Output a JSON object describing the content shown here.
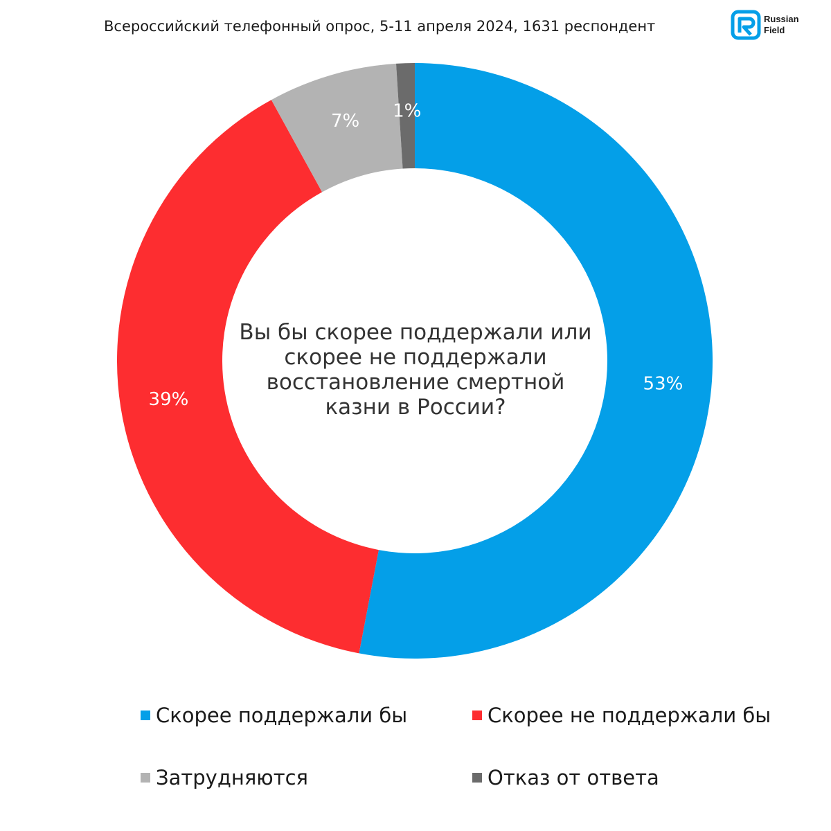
{
  "header": {
    "title": "Всероссийский телефонный опрос, 5-11 апреля 2024, 1631 респондент"
  },
  "logo": {
    "line1": "Russian",
    "line2": "Field"
  },
  "colors": {
    "support": "#049fe8",
    "oppose": "#fd2d30",
    "unsure": "#b3b3b3",
    "refuse": "#6b6b6b"
  },
  "chart_data": {
    "type": "pie",
    "variant": "donut",
    "title": "Вы бы скорее поддержали или скорее не поддержали восстановление смертной казни в России?",
    "categories": [
      "Скорее поддержали бы",
      "Скорее не поддержали бы",
      "Затрудняются",
      "Отказ от ответа"
    ],
    "values": [
      53,
      39,
      7,
      1
    ],
    "labels": [
      "53%",
      "39%",
      "7%",
      "1%"
    ],
    "unit": "%",
    "legend_position": "bottom"
  },
  "legend": [
    {
      "label": "Скорее поддержали бы"
    },
    {
      "label": "Скорее не поддержали бы"
    },
    {
      "label": "Затрудняются"
    },
    {
      "label": "Отказ от ответа"
    }
  ]
}
